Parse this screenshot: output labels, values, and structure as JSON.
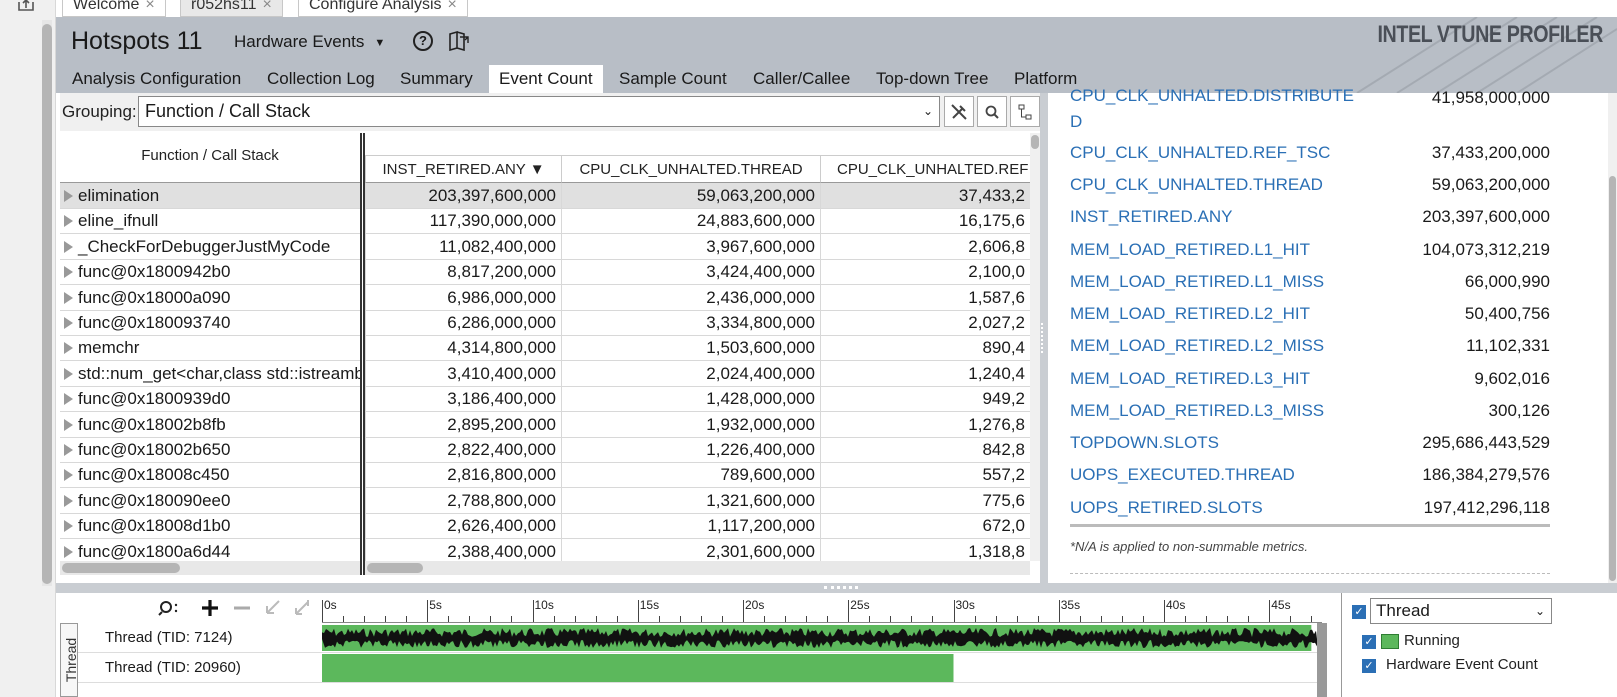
{
  "doc_tabs": [
    {
      "label": "Welcome",
      "close": "×"
    },
    {
      "label": "r052hs11",
      "close": "×"
    },
    {
      "label": "Configure Analysis",
      "close": "×"
    }
  ],
  "header": {
    "title": "Hotspots 11",
    "viewpoint": "Hardware Events",
    "viewpoint_caret": "▼",
    "help": "?",
    "brand": "INTEL VTUNE PROFILER"
  },
  "sub_tabs": [
    "Analysis Configuration",
    "Collection Log",
    "Summary",
    "Event Count",
    "Sample Count",
    "Caller/Callee",
    "Top-down Tree",
    "Platform"
  ],
  "active_sub_tab": "Event Count",
  "grouping": {
    "label": "Grouping:",
    "value": "Function / Call Stack",
    "caret": "⌄"
  },
  "grid": {
    "first_col": "Function / Call Stack",
    "columns": [
      "INST_RETIRED.ANY ▼",
      "CPU_CLK_UNHALTED.THREAD",
      "CPU_CLK_UNHALTED.REF"
    ],
    "rows": [
      {
        "fn": "elimination",
        "v1": "203,397,600,000",
        "v2": "59,063,200,000",
        "v3": "37,433,2"
      },
      {
        "fn": "eline_ifnull",
        "v1": "117,390,000,000",
        "v2": "24,883,600,000",
        "v3": "16,175,6"
      },
      {
        "fn": "_CheckForDebuggerJustMyCode",
        "v1": "11,082,400,000",
        "v2": "3,967,600,000",
        "v3": "2,606,8"
      },
      {
        "fn": "func@0x1800942b0",
        "v1": "8,817,200,000",
        "v2": "3,424,400,000",
        "v3": "2,100,0"
      },
      {
        "fn": "func@0x18000a090",
        "v1": "6,986,000,000",
        "v2": "2,436,000,000",
        "v3": "1,587,6"
      },
      {
        "fn": "func@0x180093740",
        "v1": "6,286,000,000",
        "v2": "3,334,800,000",
        "v3": "2,027,2"
      },
      {
        "fn": "memchr",
        "v1": "4,314,800,000",
        "v2": "1,503,600,000",
        "v3": "890,4"
      },
      {
        "fn": "std::num_get<char,class std::istreambuf_iterator",
        "v1": "3,410,400,000",
        "v2": "2,024,400,000",
        "v3": "1,240,4"
      },
      {
        "fn": "func@0x1800939d0",
        "v1": "3,186,400,000",
        "v2": "1,428,000,000",
        "v3": "949,2"
      },
      {
        "fn": "func@0x18002b8fb",
        "v1": "2,895,200,000",
        "v2": "1,932,000,000",
        "v3": "1,276,8"
      },
      {
        "fn": "func@0x18002b650",
        "v1": "2,822,400,000",
        "v2": "1,226,400,000",
        "v3": "842,8"
      },
      {
        "fn": "func@0x18008c450",
        "v1": "2,816,800,000",
        "v2": "789,600,000",
        "v3": "557,2"
      },
      {
        "fn": "func@0x180090ee0",
        "v1": "2,788,800,000",
        "v2": "1,321,600,000",
        "v3": "775,6"
      },
      {
        "fn": "func@0x18008d1b0",
        "v1": "2,626,400,000",
        "v2": "1,117,200,000",
        "v3": "672,0"
      },
      {
        "fn": "func@0x1800a6d44",
        "v1": "2,388,400,000",
        "v2": "2,301,600,000",
        "v3": "1,318,8"
      }
    ]
  },
  "summary": {
    "metrics": [
      {
        "name": "CPU_CLK_UNHALTED.DISTRIBUTE",
        "name2": "D",
        "value": "41,958,000,000"
      },
      {
        "name": "CPU_CLK_UNHALTED.REF_TSC",
        "value": "37,433,200,000"
      },
      {
        "name": "CPU_CLK_UNHALTED.THREAD",
        "value": "59,063,200,000"
      },
      {
        "name": "INST_RETIRED.ANY",
        "value": "203,397,600,000"
      },
      {
        "name": "MEM_LOAD_RETIRED.L1_HIT",
        "value": "104,073,312,219"
      },
      {
        "name": "MEM_LOAD_RETIRED.L1_MISS",
        "value": "66,000,990"
      },
      {
        "name": "MEM_LOAD_RETIRED.L2_HIT",
        "value": "50,400,756"
      },
      {
        "name": "MEM_LOAD_RETIRED.L2_MISS",
        "value": "11,102,331"
      },
      {
        "name": "MEM_LOAD_RETIRED.L3_HIT",
        "value": "9,602,016"
      },
      {
        "name": "MEM_LOAD_RETIRED.L3_MISS",
        "value": "300,126"
      },
      {
        "name": "TOPDOWN.SLOTS",
        "value": "295,686,443,529"
      },
      {
        "name": "UOPS_EXECUTED.THREAD",
        "value": "186,384,279,576"
      },
      {
        "name": "UOPS_RETIRED.SLOTS",
        "value": "197,412,296,118"
      }
    ],
    "note": "*N/A is applied to non-summable metrics."
  },
  "timeline": {
    "ticks": [
      "0s",
      "5s",
      "10s",
      "15s",
      "20s",
      "25s",
      "30s",
      "35s",
      "40s",
      "45s"
    ],
    "side_label": "Thread",
    "threads": [
      {
        "label": "Thread (TID: 7124)",
        "running_until_s": 47
      },
      {
        "label": "Thread (TID: 20960)",
        "running_until_s": 30
      }
    ],
    "legend": {
      "select": "Thread",
      "caret": "⌄",
      "items": [
        "Running",
        "Hardware Event Count"
      ],
      "check": "✓"
    },
    "colors": {
      "running": "#5cb85c",
      "events": "#111111"
    }
  },
  "colors": {
    "header_bg": "#b8bec6",
    "link": "#2a6fb5",
    "selected_row": "#e0e0e0"
  }
}
